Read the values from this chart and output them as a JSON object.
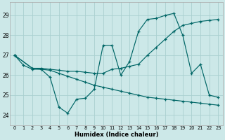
{
  "xlabel": "Humidex (Indice chaleur)",
  "bg_color": "#cce8e8",
  "grid_color": "#aad0d0",
  "line_color": "#006666",
  "xlim": [
    -0.5,
    23.5
  ],
  "ylim": [
    23.5,
    29.65
  ],
  "yticks": [
    24,
    25,
    26,
    27,
    28,
    29
  ],
  "xticks": [
    0,
    1,
    2,
    3,
    4,
    5,
    6,
    7,
    8,
    9,
    10,
    11,
    12,
    13,
    14,
    15,
    16,
    17,
    18,
    19,
    20,
    21,
    22,
    23
  ],
  "s1_x": [
    0,
    1,
    2,
    3,
    4,
    5,
    6,
    7,
    8,
    9,
    10,
    11,
    12,
    13,
    14,
    15,
    16,
    17,
    18,
    19,
    20,
    21,
    22,
    23
  ],
  "s1_y": [
    27.0,
    26.5,
    26.3,
    26.3,
    25.9,
    24.4,
    24.1,
    24.8,
    24.85,
    25.3,
    27.5,
    27.5,
    26.0,
    26.7,
    28.2,
    28.8,
    28.85,
    29.0,
    29.1,
    28.0,
    26.1,
    26.55,
    25.0,
    24.9
  ],
  "s2_x": [
    0,
    2,
    3,
    4,
    5,
    6,
    7,
    8,
    9,
    10,
    11,
    12,
    13,
    14,
    15,
    16,
    17,
    18,
    19,
    20,
    21,
    22,
    23
  ],
  "s2_y": [
    27.0,
    26.35,
    26.35,
    26.3,
    26.25,
    26.2,
    26.2,
    26.15,
    26.1,
    26.1,
    26.3,
    26.35,
    26.45,
    26.55,
    27.0,
    27.4,
    27.8,
    28.2,
    28.5,
    28.6,
    28.7,
    28.75,
    28.8
  ],
  "s3_x": [
    0,
    2,
    3,
    4,
    5,
    6,
    7,
    8,
    9,
    10,
    11,
    12,
    13,
    14,
    15,
    16,
    17,
    18,
    19,
    20,
    21,
    22,
    23
  ],
  "s3_y": [
    27.0,
    26.35,
    26.3,
    26.25,
    26.1,
    25.95,
    25.8,
    25.65,
    25.5,
    25.4,
    25.3,
    25.2,
    25.1,
    25.0,
    24.9,
    24.85,
    24.8,
    24.75,
    24.7,
    24.65,
    24.6,
    24.55,
    24.5
  ]
}
